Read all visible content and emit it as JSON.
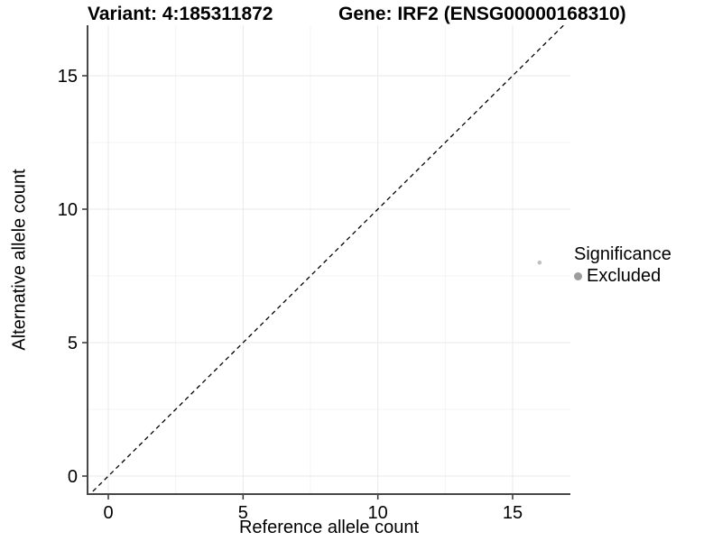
{
  "chart_data": {
    "type": "scatter",
    "title_left": "Variant: 4:185311872",
    "title_right": "Gene: IRF2 (ENSG00000168310)",
    "xlabel": "Reference allele count",
    "ylabel": "Alternative allele count",
    "xlim": [
      -0.8,
      17.1
    ],
    "ylim": [
      -0.7,
      16.9
    ],
    "xticks": [
      0,
      5,
      10,
      15
    ],
    "yticks": [
      0,
      5,
      10,
      15
    ],
    "minor_xticks": [
      2.5,
      7.5,
      12.5
    ],
    "minor_yticks": [
      2.5,
      7.5,
      12.5
    ],
    "grid": true,
    "points": [
      {
        "x": 16,
        "y": 8,
        "series": "Excluded"
      }
    ],
    "identity_line": {
      "style": "dashed",
      "from": -1,
      "to": 18
    },
    "legend": {
      "title": "Significance",
      "position": "right",
      "items": [
        {
          "label": "Excluded",
          "color": "#9c9c9c"
        }
      ]
    },
    "colors": {
      "point": "#c0c0c0",
      "legend_dot": "#9c9c9c",
      "grid_major": "#e9e9e9",
      "grid_minor": "#f4f4f4",
      "axis_line": "#474747",
      "tick_mark": "#333333",
      "dashed_line": "#000000",
      "text": "#000000"
    }
  }
}
